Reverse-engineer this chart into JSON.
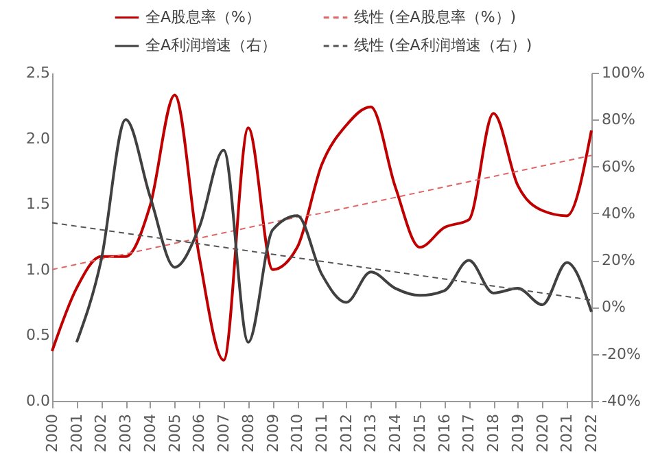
{
  "chart_data": {
    "type": "line",
    "categories": [
      "2000",
      "2001",
      "2002",
      "2003",
      "2004",
      "2005",
      "2006",
      "2007",
      "2008",
      "2009",
      "2010",
      "2011",
      "2012",
      "2013",
      "2014",
      "2015",
      "2016",
      "2017",
      "2018",
      "2019",
      "2020",
      "2021",
      "2022"
    ],
    "series": [
      {
        "name": "全A股息率（%）",
        "color": "#c00000",
        "line_style": "solid",
        "values": [
          0.38,
          0.86,
          1.1,
          1.1,
          1.49,
          2.33,
          1.1,
          0.31,
          2.08,
          1.0,
          1.17,
          1.8,
          2.1,
          2.24,
          1.63,
          1.17,
          1.32,
          1.38,
          2.19,
          1.64,
          1.45,
          1.41,
          2.06
        ]
      },
      {
        "name": "全A利润增速（右）",
        "color": "#404040",
        "line_style": "solid",
        "axis": "y2",
        "values": [
          null,
          -15,
          20,
          80,
          47,
          17,
          34,
          67,
          -15,
          33,
          39,
          14,
          2,
          15,
          8,
          5,
          7,
          20,
          6,
          8,
          1,
          19,
          -2
        ]
      },
      {
        "name": "线性 (全A股息率（%）)",
        "color": "#e06666",
        "line_style": "dashed",
        "values": [
          1.0,
          1.04,
          1.08,
          1.12,
          1.16,
          1.2,
          1.24,
          1.28,
          1.32,
          1.36,
          1.4,
          1.43,
          1.47,
          1.51,
          1.55,
          1.59,
          1.63,
          1.67,
          1.71,
          1.75,
          1.79,
          1.83,
          1.87
        ]
      },
      {
        "name": "线性 (全A利润增速（右）)",
        "color": "#555555",
        "line_style": "dashed",
        "axis": "y2",
        "values": [
          36,
          34.5,
          33,
          31.5,
          30,
          28.5,
          27,
          25.5,
          24,
          22.5,
          21,
          19.5,
          18,
          16.5,
          15,
          13.5,
          12,
          10.5,
          9,
          7.5,
          6,
          4.5,
          3
        ]
      }
    ],
    "ylim": [
      0,
      2.5
    ],
    "yticks": [
      {
        "value": 0,
        "label": "0.0"
      },
      {
        "value": 0.5,
        "label": "0.5"
      },
      {
        "value": 1,
        "label": "1.0"
      },
      {
        "value": 1.5,
        "label": "1.5"
      },
      {
        "value": 2,
        "label": "2.0"
      },
      {
        "value": 2.5,
        "label": "2.5"
      }
    ],
    "y2lim": [
      -40,
      100
    ],
    "y2ticks": [
      {
        "value": -40,
        "label": "-40%"
      },
      {
        "value": -20,
        "label": "-20%"
      },
      {
        "value": 0,
        "label": "0%"
      },
      {
        "value": 20,
        "label": "20%"
      },
      {
        "value": 40,
        "label": "40%"
      },
      {
        "value": 60,
        "label": "60%"
      },
      {
        "value": 80,
        "label": "80%"
      },
      {
        "value": 100,
        "label": "100%"
      }
    ],
    "grid": false,
    "legend": "top"
  }
}
